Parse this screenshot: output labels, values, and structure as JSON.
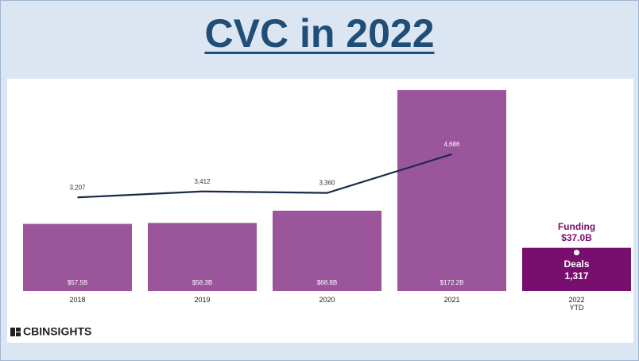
{
  "chart_data": {
    "type": "bar",
    "title": "CVC in 2022",
    "categories": [
      "2018",
      "2019",
      "2020",
      "2021",
      "2022 YTD"
    ],
    "series": [
      {
        "name": "Funding",
        "type": "bar",
        "color": "#9b559b",
        "highlight_color": "#780f6f",
        "values": [
          57.5,
          58.3,
          68.8,
          172.2,
          37.0
        ],
        "value_labels": [
          "$57.5B",
          "$58.3B",
          "$68.8B",
          "$172.2B",
          "$37.0B"
        ]
      },
      {
        "name": "Deals",
        "type": "line",
        "axis": "y2",
        "color": "#1b2a4a",
        "values": [
          3207,
          3412,
          3360,
          4686,
          1317
        ],
        "value_labels": [
          "3,207",
          "3,412",
          "3,360",
          "4,686",
          "1,317"
        ]
      }
    ],
    "ylim": [
      0,
      175
    ],
    "y2lim": [
      0,
      7000
    ],
    "logo": "CBINSIGHTS"
  }
}
